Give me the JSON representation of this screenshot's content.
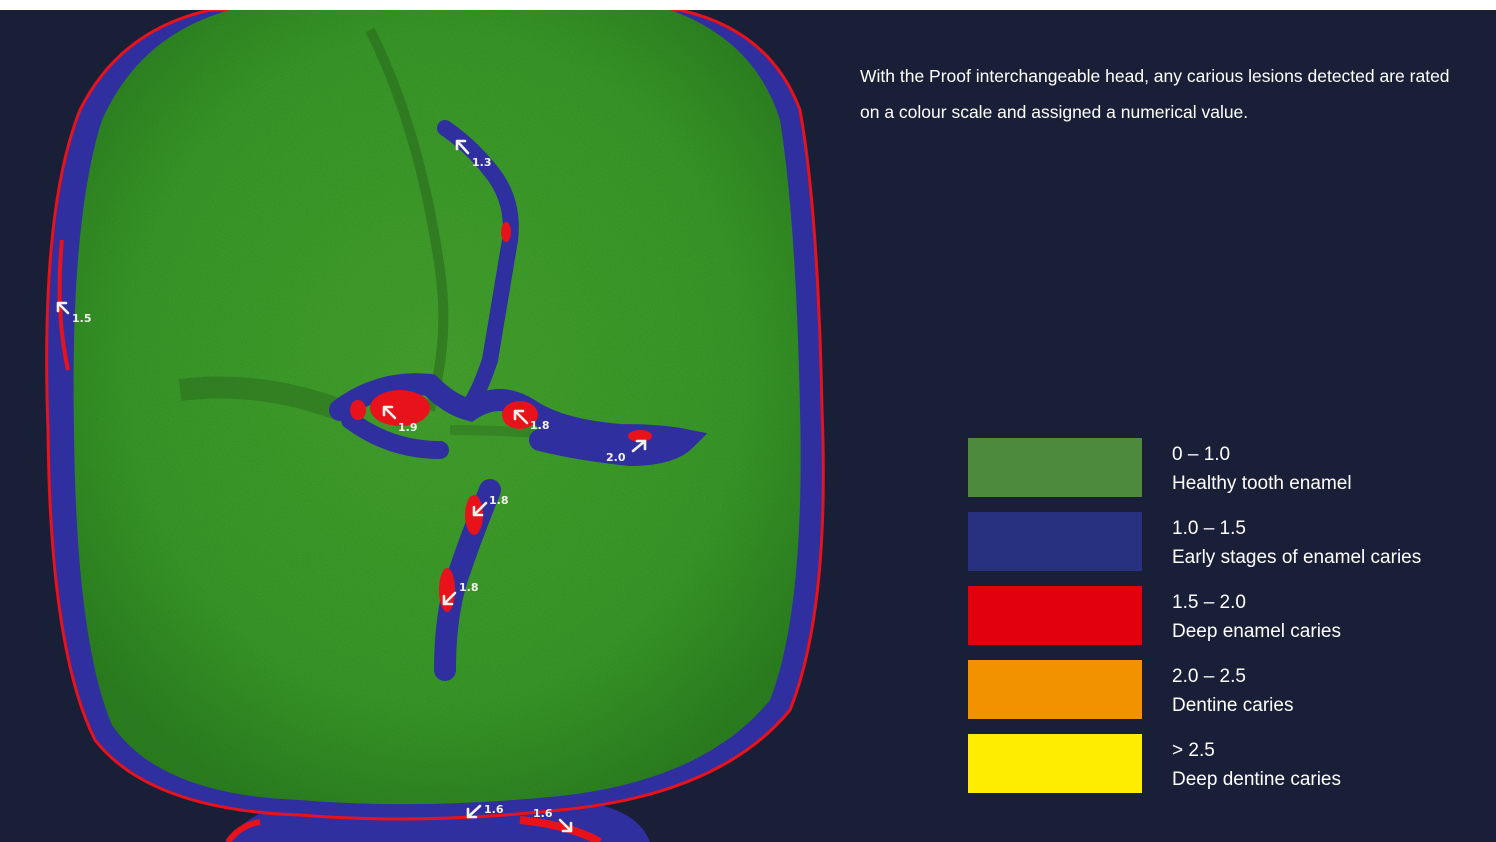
{
  "description": "With the Proof interchangeable head, any carious lesions detected are rated on a colour scale and assigned a numerical value.",
  "lesion_labels": [
    "1.3",
    "1.5",
    "1.9",
    "1.8",
    "2.0",
    "1.8",
    "1.8",
    "1.6",
    "1.6"
  ],
  "legend": [
    {
      "range": "0 – 1.0",
      "label": "Healthy tooth enamel",
      "color": "#4e8a3e"
    },
    {
      "range": "1.0 – 1.5",
      "label": "Early stages of enamel caries",
      "color": "#28317f"
    },
    {
      "range": "1.5 – 2.0",
      "label": "Deep enamel caries",
      "color": "#e2000f"
    },
    {
      "range": "2.0 – 2.5",
      "label": "Dentine caries",
      "color": "#f39200"
    },
    {
      "range": "> 2.5",
      "label": "Deep dentine caries",
      "color": "#ffed00"
    }
  ],
  "colors": {
    "background": "#1a1f38",
    "enamel_green": "#3f9a2c",
    "caries_blue": "#2f2fa0",
    "caries_red": "#e8121b"
  }
}
